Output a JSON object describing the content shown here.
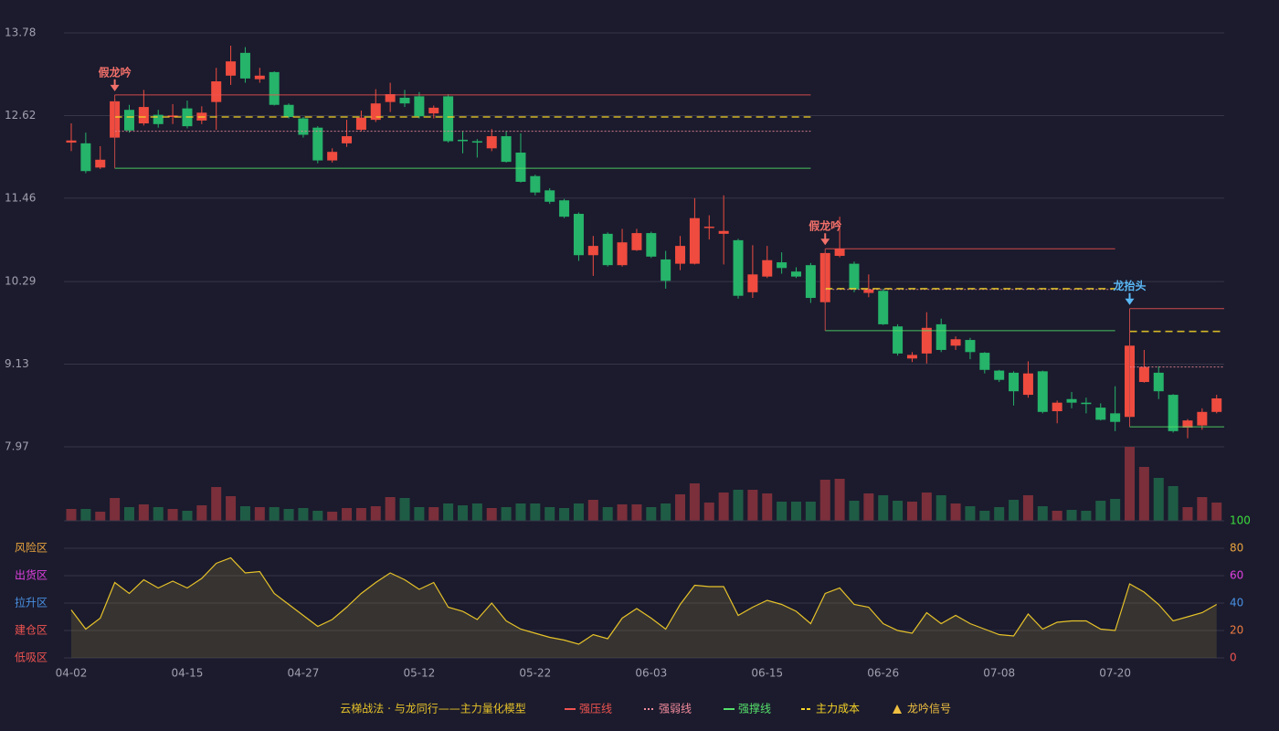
{
  "chart_data": {
    "type": "candlestick",
    "categories": [
      "04-02",
      null,
      null,
      null,
      null,
      null,
      null,
      null,
      "04-15",
      null,
      null,
      null,
      null,
      null,
      null,
      null,
      "04-27",
      null,
      null,
      null,
      null,
      null,
      null,
      null,
      "05-12",
      null,
      null,
      null,
      null,
      null,
      null,
      null,
      "05-22",
      null,
      null,
      null,
      null,
      null,
      null,
      null,
      "06-03",
      null,
      null,
      null,
      null,
      null,
      null,
      null,
      "06-15",
      null,
      null,
      null,
      null,
      null,
      null,
      null,
      "06-26",
      null,
      null,
      null,
      null,
      null,
      null,
      null,
      "07-08",
      null,
      null,
      null,
      null,
      null,
      null,
      null,
      "07-20",
      null,
      null,
      null,
      null,
      null,
      null,
      null
    ],
    "open": [
      12.24,
      12.23,
      11.89,
      12.31,
      12.7,
      12.51,
      12.63,
      12.6,
      12.72,
      12.55,
      12.81,
      13.18,
      13.5,
      13.13,
      13.23,
      12.77,
      12.58,
      12.45,
      11.99,
      12.23,
      12.42,
      12.56,
      12.81,
      12.87,
      12.89,
      12.65,
      12.89,
      12.28,
      12.26,
      12.16,
      12.33,
      12.1,
      11.77,
      11.57,
      11.43,
      11.24,
      10.66,
      10.96,
      10.52,
      10.73,
      10.97,
      10.6,
      10.54,
      10.54,
      11.05,
      10.96,
      10.87,
      10.14,
      10.36,
      10.56,
      10.43,
      10.52,
      10.0,
      10.65,
      10.54,
      10.13,
      10.16,
      9.66,
      9.21,
      9.28,
      9.69,
      9.39,
      9.47,
      9.29,
      9.04,
      9.01,
      8.7,
      9.03,
      8.47,
      8.64,
      8.59,
      8.52,
      8.44,
      8.39,
      8.88,
      9.01,
      8.7,
      8.24,
      8.27,
      8.46
    ],
    "high": [
      12.51,
      12.38,
      12.19,
      12.86,
      12.77,
      12.98,
      12.7,
      12.78,
      12.83,
      12.75,
      13.29,
      13.6,
      13.58,
      13.29,
      13.24,
      12.79,
      12.6,
      12.47,
      12.16,
      12.56,
      12.69,
      12.99,
      13.08,
      12.98,
      12.95,
      12.76,
      12.92,
      12.4,
      12.29,
      12.43,
      12.4,
      12.37,
      11.79,
      11.6,
      11.45,
      11.26,
      10.93,
      10.98,
      11.03,
      11.03,
      10.99,
      10.72,
      10.93,
      11.46,
      11.22,
      11.5,
      10.89,
      10.8,
      10.79,
      10.7,
      10.49,
      10.55,
      10.7,
      11.2,
      10.57,
      10.39,
      10.19,
      9.69,
      9.3,
      9.86,
      9.77,
      9.52,
      9.5,
      9.3,
      9.05,
      9.03,
      9.17,
      9.04,
      8.62,
      8.74,
      8.66,
      8.58,
      8.82,
      9.4,
      9.33,
      9.1,
      8.71,
      8.36,
      8.51,
      8.7
    ],
    "low": [
      12.12,
      11.81,
      11.87,
      12.31,
      12.38,
      12.48,
      12.45,
      12.5,
      12.44,
      12.5,
      12.42,
      13.05,
      13.08,
      13.08,
      12.76,
      12.58,
      12.31,
      11.95,
      11.96,
      12.18,
      12.4,
      12.53,
      12.67,
      12.74,
      12.58,
      12.58,
      12.24,
      12.09,
      12.03,
      12.12,
      11.96,
      11.68,
      11.5,
      11.38,
      11.18,
      10.58,
      10.37,
      10.5,
      10.5,
      10.72,
      10.62,
      10.19,
      10.45,
      10.53,
      10.88,
      10.53,
      10.05,
      10.06,
      10.34,
      10.4,
      10.34,
      9.99,
      9.98,
      10.63,
      10.14,
      10.07,
      9.68,
      9.25,
      9.16,
      9.14,
      9.3,
      9.33,
      9.2,
      9.0,
      8.88,
      8.55,
      8.66,
      8.44,
      8.3,
      8.51,
      8.44,
      8.34,
      8.19,
      8.36,
      8.87,
      8.64,
      8.17,
      8.09,
      8.21,
      8.44
    ],
    "close": [
      12.27,
      11.84,
      12.0,
      12.82,
      12.41,
      12.74,
      12.5,
      12.62,
      12.47,
      12.66,
      13.1,
      13.38,
      13.14,
      13.18,
      12.77,
      12.6,
      12.35,
      11.99,
      12.11,
      12.33,
      12.59,
      12.79,
      12.92,
      12.79,
      12.61,
      12.73,
      12.26,
      12.26,
      12.24,
      12.33,
      11.97,
      11.69,
      11.54,
      11.41,
      11.2,
      10.66,
      10.79,
      10.52,
      10.84,
      10.97,
      10.64,
      10.3,
      10.79,
      11.18,
      11.06,
      11.0,
      10.09,
      10.39,
      10.59,
      10.48,
      10.36,
      10.06,
      10.69,
      10.75,
      10.18,
      10.18,
      9.69,
      9.28,
      9.26,
      9.64,
      9.33,
      9.48,
      9.3,
      9.05,
      8.91,
      8.75,
      9.0,
      8.46,
      8.59,
      8.59,
      8.57,
      8.35,
      8.32,
      9.39,
      9.09,
      8.75,
      8.19,
      8.34,
      8.46,
      8.65
    ],
    "ylim": [
      7.97,
      13.78
    ],
    "yticks": [
      7.97,
      9.13,
      10.29,
      11.46,
      12.62,
      13.78
    ],
    "grid": true,
    "up_color": "#ef4b3f",
    "down_color": "#26b36a",
    "volume": [
      13,
      13,
      10,
      25,
      15,
      18,
      15,
      13,
      11,
      17,
      37,
      27,
      16,
      15,
      15,
      13,
      14,
      11,
      10,
      14,
      14,
      16,
      26,
      25,
      15,
      15,
      19,
      17,
      19,
      14,
      15,
      19,
      19,
      15,
      14,
      19,
      23,
      15,
      18,
      18,
      15,
      19,
      29,
      41,
      20,
      31,
      34,
      34,
      30,
      21,
      21,
      21,
      45,
      46,
      22,
      30,
      28,
      22,
      21,
      31,
      28,
      19,
      16,
      11,
      15,
      23,
      28,
      16,
      11,
      12,
      11,
      22,
      24,
      81,
      59,
      47,
      38,
      15,
      26,
      20
    ],
    "volume_up_color": "#7a2f3a",
    "volume_down_color": "#1f5c45",
    "indicator": {
      "values": [
        35,
        21,
        29,
        55,
        47,
        57,
        51,
        56,
        51,
        58,
        69,
        73,
        62,
        63,
        47,
        39,
        31,
        23,
        28,
        37,
        47,
        55,
        62,
        57,
        50,
        55,
        37,
        34,
        28,
        40,
        27,
        21,
        18,
        15,
        13,
        10,
        17,
        14,
        29,
        36,
        29,
        21,
        39,
        53,
        52,
        52,
        31,
        37,
        42,
        39,
        34,
        25,
        47,
        51,
        39,
        37,
        25,
        20,
        18,
        33,
        25,
        31,
        25,
        21,
        17,
        16,
        32,
        21,
        26,
        27,
        27,
        21,
        20,
        54,
        48,
        39,
        27,
        30,
        33,
        39
      ],
      "color": "#e6c229",
      "ylim": [
        0,
        100
      ],
      "yticks": [
        0,
        20,
        40,
        60,
        80,
        100
      ],
      "ytick_colors": [
        "#ef5350",
        "#ef7b3f",
        "#4a90e2",
        "#e040e0",
        "#e8a33d",
        "#3cdc3c"
      ],
      "zones": [
        {
          "label": "风险区",
          "value": 80,
          "color": "#e8a33d"
        },
        {
          "label": "出货区",
          "value": 60,
          "color": "#e040e0"
        },
        {
          "label": "拉升区",
          "value": 40,
          "color": "#4a90e2"
        },
        {
          "label": "建仓区",
          "value": 20,
          "color": "#ef5350"
        },
        {
          "label": "低吸区",
          "value": 0,
          "color": "#ef5350"
        }
      ]
    },
    "signals": [
      {
        "label": "假龙吟",
        "index": 3,
        "color": "#f2706a"
      },
      {
        "label": "假龙吟",
        "index": 52,
        "color": "#f2706a"
      },
      {
        "label": "龙抬头",
        "index": 73,
        "color": "#5ab8f5"
      }
    ],
    "levels": [
      {
        "start": 3,
        "end": 51,
        "values": [
          12.91,
          12.4,
          11.88,
          12.6
        ]
      },
      {
        "start": 52,
        "end": 72,
        "values": [
          10.75,
          10.18,
          9.6,
          10.19
        ]
      },
      {
        "start": 73,
        "end": 79,
        "values": [
          9.91,
          9.09,
          8.25,
          9.59
        ]
      }
    ],
    "legend": {
      "title": "云梯战法 · 与龙同行——主力量化模型",
      "title_color": "#e6c229",
      "items": [
        {
          "name": "强压线",
          "color": "#ef5350",
          "style": "solid"
        },
        {
          "name": "强弱线",
          "color": "#f28b9b",
          "style": "dotted"
        },
        {
          "name": "强撑线",
          "color": "#55e06a",
          "style": "solid"
        },
        {
          "name": "主力成本",
          "color": "#f5d327",
          "style": "dashed"
        },
        {
          "name": "龙吟信号",
          "color": "#f0c040",
          "style": "triangle"
        }
      ]
    }
  }
}
